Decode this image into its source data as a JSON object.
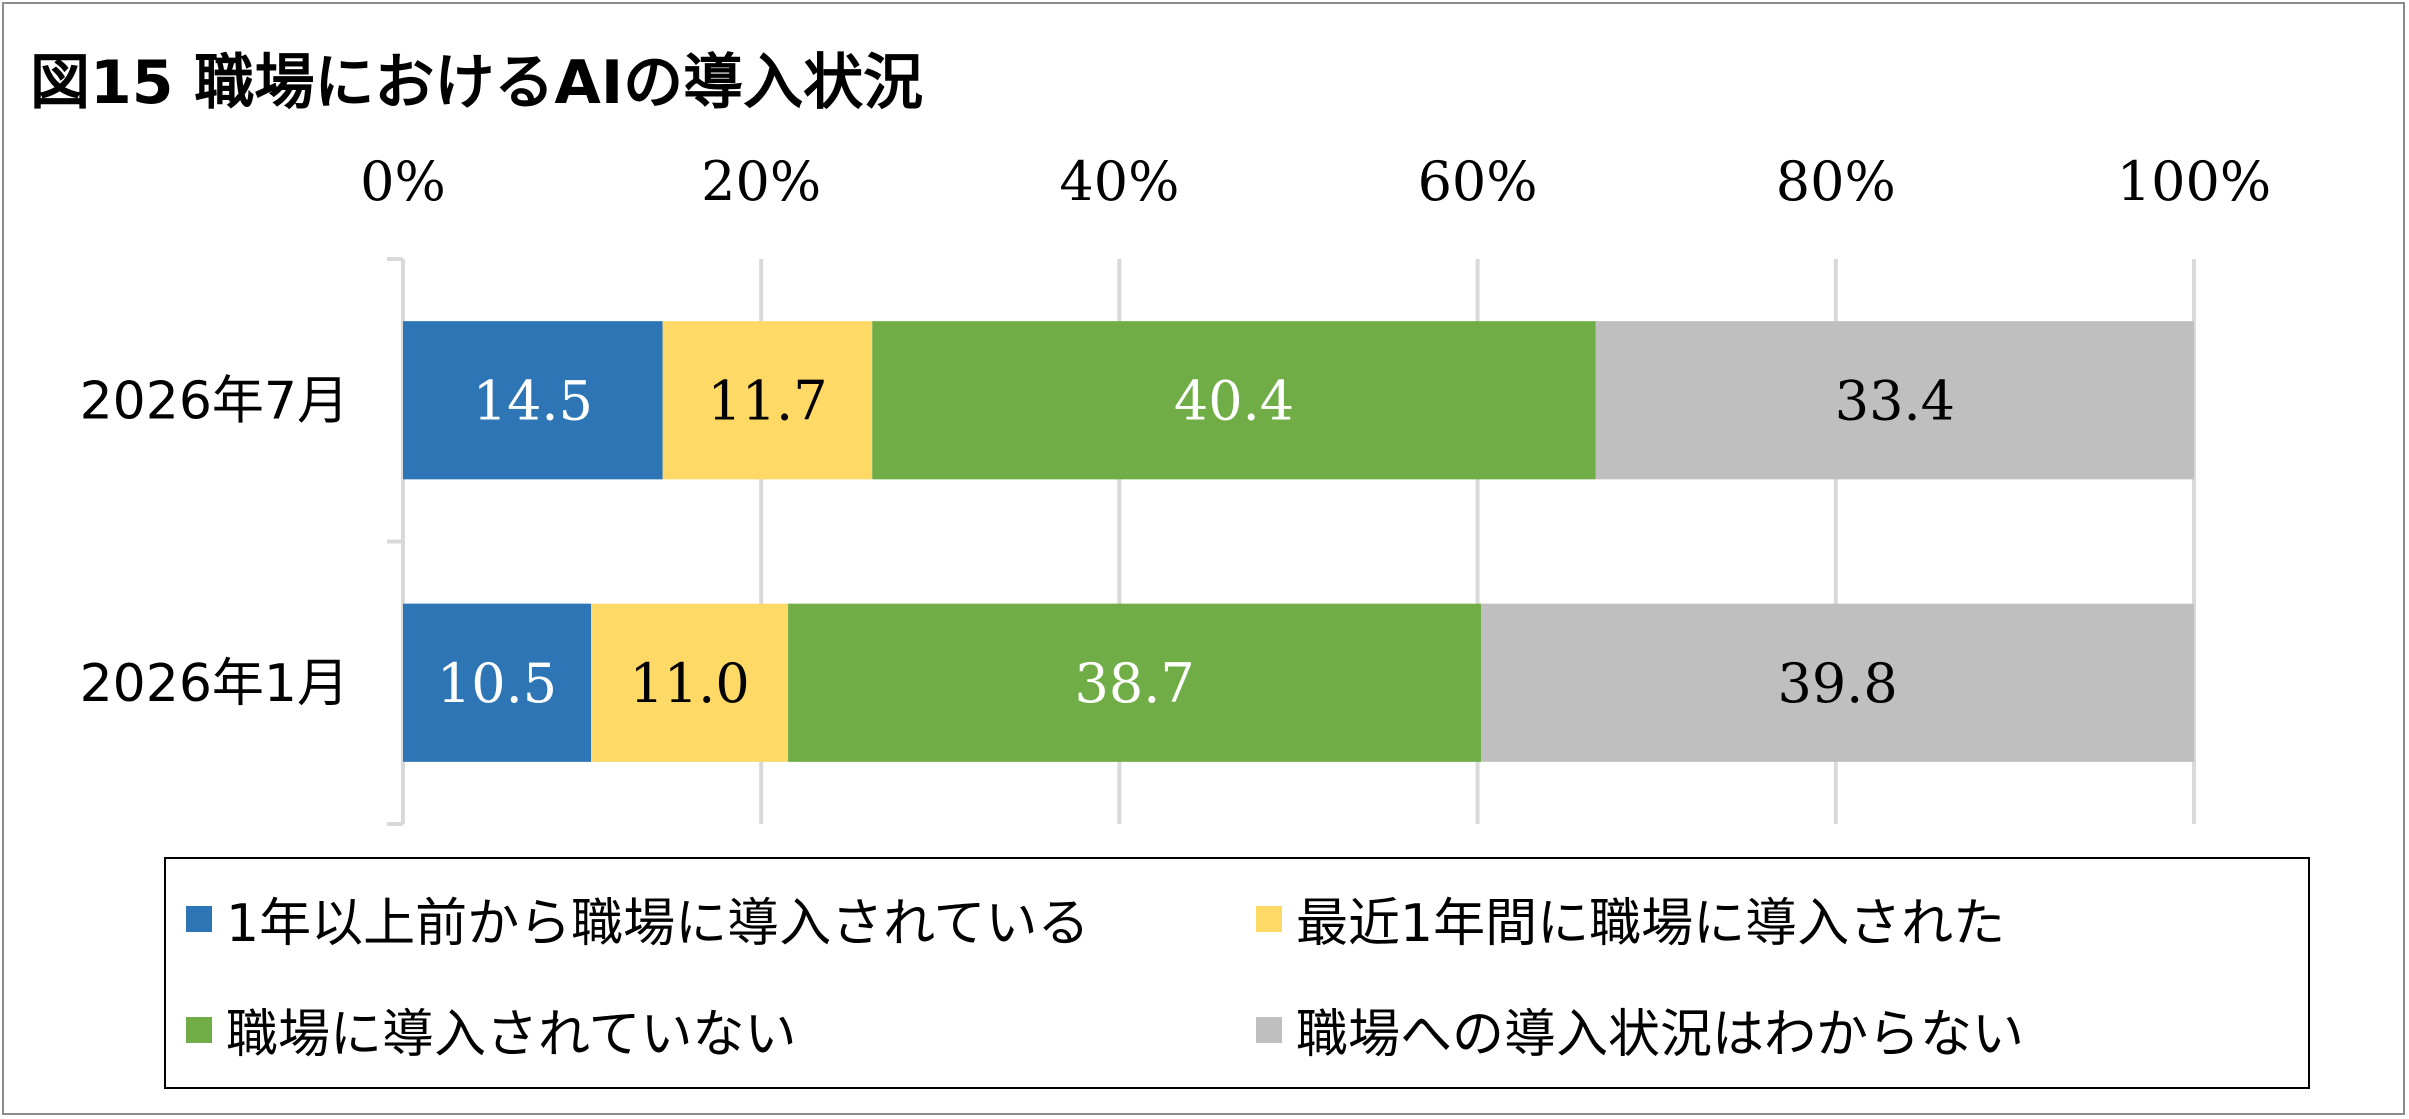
{
  "chart_data": {
    "type": "bar",
    "orientation": "horizontal",
    "stacked": true,
    "title": "図15 職場におけるAIの導入状況",
    "categories": [
      "2026年7月",
      "2026年1月"
    ],
    "series": [
      {
        "name": "1年以上前から職場に導入されている",
        "values": [
          14.5,
          10.5
        ],
        "color": "#2e75b6",
        "label_color": "#ffffff"
      },
      {
        "name": "最近1年間に職場に導入された",
        "values": [
          11.7,
          11.0
        ],
        "color": "#ffd966",
        "label_color": "#000000"
      },
      {
        "name": "職場に導入されていない",
        "values": [
          40.4,
          38.7
        ],
        "color": "#70ad47",
        "label_color": "#ffffff"
      },
      {
        "name": "職場への導入状況はわからない",
        "values": [
          33.4,
          39.8
        ],
        "color": "#bfbfbf",
        "label_color": "#000000"
      }
    ],
    "xlim": [
      0,
      100
    ],
    "x_ticks": [
      0,
      20,
      40,
      60,
      80,
      100
    ],
    "x_tick_labels": [
      "0%",
      "20%",
      "40%",
      "60%",
      "80%",
      "100%"
    ],
    "x_axis_position": "top",
    "grid": true,
    "legend_position": "bottom"
  }
}
